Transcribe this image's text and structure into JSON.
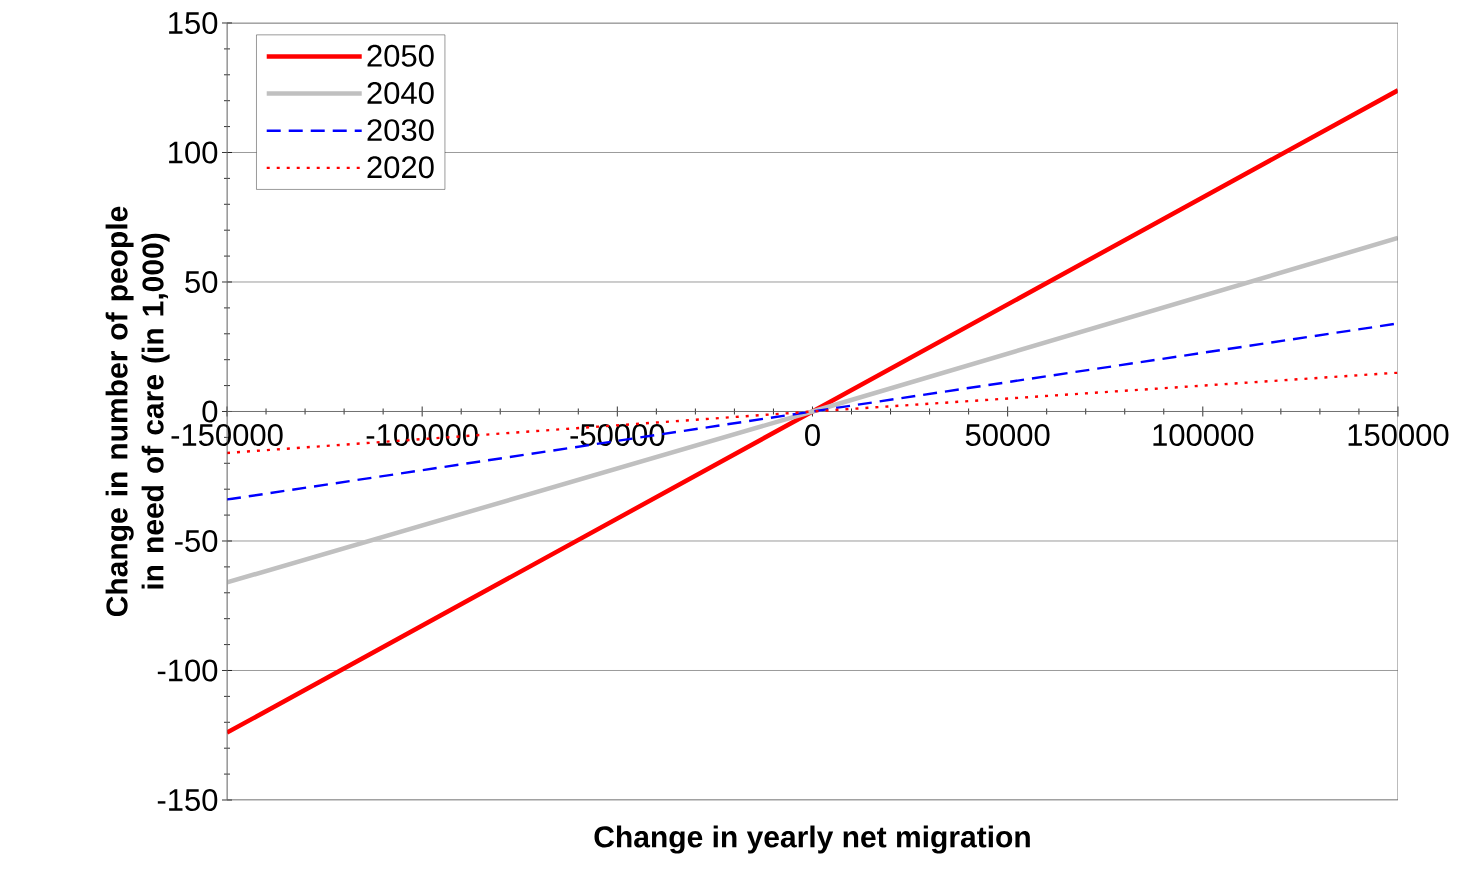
{
  "chart_data": {
    "type": "line",
    "xlabel": "Change in yearly net migration",
    "ylabel": "Change in number of people in need of care (in 1,000)",
    "x": [
      -150000,
      0,
      150000
    ],
    "series": [
      {
        "name": "2050",
        "color": "#ff0000",
        "line_style": "solid",
        "values": [
          -124,
          0,
          124
        ]
      },
      {
        "name": "2040",
        "color": "#c0c0c0",
        "line_style": "solid",
        "values": [
          -66,
          0,
          67
        ]
      },
      {
        "name": "2030",
        "color": "#0000ff",
        "line_style": "dashed",
        "values": [
          -34,
          0,
          34
        ]
      },
      {
        "name": "2020",
        "color": "#ff0000",
        "line_style": "dotted",
        "values": [
          -16,
          0,
          15
        ]
      }
    ],
    "xlim": [
      -150000,
      150000
    ],
    "xticks": [
      -150000,
      -100000,
      -50000,
      0,
      50000,
      100000,
      150000
    ],
    "ylim": [
      -150,
      150
    ],
    "yticks": [
      -150,
      -100,
      -50,
      0,
      50,
      100,
      150
    ],
    "grid": "y",
    "legend": "top left",
    "marker": "none"
  }
}
